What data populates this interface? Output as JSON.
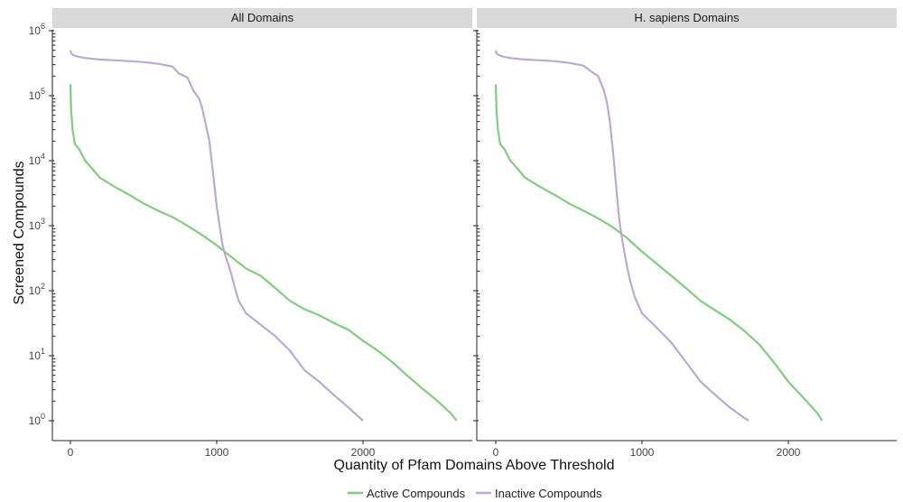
{
  "chart_data": {
    "type": "line",
    "xlabel": "Quantity of Pfam Domains Above Threshold",
    "ylabel": "Screened Compounds",
    "y_scale": "log10",
    "ylim": [
      1,
      1000000
    ],
    "xlim": [
      0,
      2700
    ],
    "x_ticks": [
      "0",
      "1000",
      "2000"
    ],
    "y_ticks": [
      {
        "base": "10",
        "exp": "0"
      },
      {
        "base": "10",
        "exp": "1"
      },
      {
        "base": "10",
        "exp": "2"
      },
      {
        "base": "10",
        "exp": "3"
      },
      {
        "base": "10",
        "exp": "4"
      },
      {
        "base": "10",
        "exp": "5"
      },
      {
        "base": "10",
        "exp": "6"
      }
    ],
    "legend_position": "bottom",
    "grid": false,
    "colors": {
      "active": "#7fce7e",
      "inactive": "#bca8d6",
      "strip": "#d9d9d9"
    },
    "legend": [
      "Active Compounds",
      "Inactive Compounds"
    ],
    "panels": [
      {
        "title": "All Domains",
        "series": [
          {
            "name": "Active Compounds",
            "x": [
              0,
              5,
              15,
              30,
              60,
              100,
              150,
              200,
              300,
              400,
              500,
              600,
              700,
              800,
              900,
              1000,
              1100,
              1200,
              1300,
              1400,
              1500,
              1600,
              1700,
              1800,
              1900,
              2000,
              2100,
              2200,
              2300,
              2400,
              2500,
              2600,
              2640
            ],
            "y": [
              150000,
              60000,
              30000,
              18000,
              15000,
              10000,
              7500,
              5500,
              4000,
              3000,
              2200,
              1700,
              1350,
              1000,
              720,
              500,
              330,
              220,
              170,
              110,
              70,
              52,
              42,
              32,
              25,
              17,
              12,
              8,
              5,
              3.2,
              2.1,
              1.3,
              1
            ]
          },
          {
            "name": "Inactive Compounds",
            "x": [
              0,
              5,
              20,
              50,
              100,
              200,
              300,
              400,
              500,
              600,
              700,
              740,
              800,
              840,
              880,
              900,
              950,
              980,
              1000,
              1020,
              1040,
              1060,
              1080,
              1100,
              1120,
              1150,
              1200,
              1300,
              1400,
              1500,
              1600,
              1700,
              1800,
              1900,
              2000
            ],
            "y": [
              500000,
              450000,
              420000,
              400000,
              380000,
              360000,
              350000,
              340000,
              330000,
              310000,
              280000,
              220000,
              190000,
              120000,
              90000,
              65000,
              20000,
              5000,
              2000,
              1000,
              500,
              340,
              250,
              180,
              120,
              70,
              45,
              30,
              20,
              12,
              6,
              4,
              2.5,
              1.6,
              1
            ]
          }
        ]
      },
      {
        "title": "H. sapiens Domains",
        "series": [
          {
            "name": "Active Compounds",
            "x": [
              0,
              5,
              15,
              30,
              60,
              100,
              150,
              200,
              300,
              400,
              500,
              600,
              700,
              800,
              900,
              1000,
              1100,
              1200,
              1300,
              1400,
              1500,
              1600,
              1700,
              1800,
              1900,
              2000,
              2100,
              2200,
              2230
            ],
            "y": [
              150000,
              60000,
              30000,
              18000,
              15000,
              10000,
              7500,
              5500,
              4000,
              3000,
              2200,
              1700,
              1300,
              950,
              640,
              400,
              260,
              170,
              110,
              70,
              50,
              36,
              24,
              15,
              8,
              4,
              2.3,
              1.3,
              1
            ]
          },
          {
            "name": "Inactive Compounds",
            "x": [
              0,
              5,
              20,
              50,
              100,
              200,
              300,
              400,
              500,
              600,
              660,
              700,
              740,
              760,
              780,
              800,
              820,
              840,
              860,
              880,
              900,
              920,
              950,
              1000,
              1100,
              1200,
              1300,
              1400,
              1500,
              1600,
              1700,
              1730
            ],
            "y": [
              500000,
              450000,
              420000,
              400000,
              380000,
              360000,
              350000,
              340000,
              320000,
              290000,
              230000,
              200000,
              120000,
              80000,
              40000,
              15000,
              5000,
              1500,
              700,
              380,
              220,
              140,
              80,
              45,
              27,
              16,
              8,
              4,
              2.5,
              1.6,
              1.1,
              1
            ]
          }
        ]
      }
    ]
  }
}
